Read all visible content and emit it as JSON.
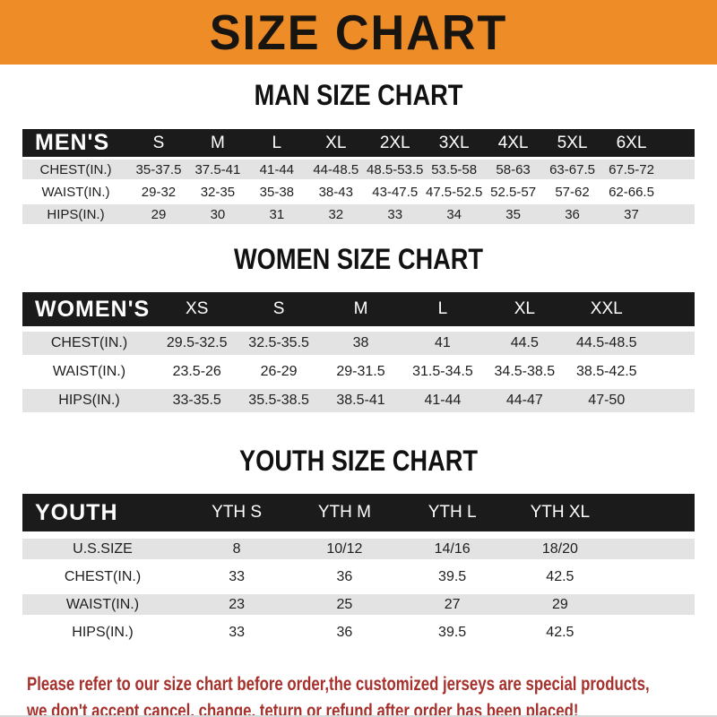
{
  "banner": {
    "title": "SIZE CHART"
  },
  "sections": [
    {
      "heading": "MAN SIZE CHART",
      "header_label": "MEN'S",
      "columns": [
        "S",
        "M",
        "L",
        "XL",
        "2XL",
        "3XL",
        "4XL",
        "5XL",
        "6XL"
      ],
      "rows": [
        {
          "label": "CHEST(IN.)",
          "values": [
            "35-37.5",
            "37.5-41",
            "41-44",
            "44-48.5",
            "48.5-53.5",
            "53.5-58",
            "58-63",
            "63-67.5",
            "67.5-72"
          ]
        },
        {
          "label": "WAIST(IN.)",
          "values": [
            "29-32",
            "32-35",
            "35-38",
            "38-43",
            "43-47.5",
            "47.5-52.5",
            "52.5-57",
            "57-62",
            "62-66.5"
          ]
        },
        {
          "label": "HIPS(IN.)",
          "values": [
            "29",
            "30",
            "31",
            "32",
            "33",
            "34",
            "35",
            "36",
            "37"
          ]
        }
      ]
    },
    {
      "heading": "WOMEN SIZE CHART",
      "header_label": "WOMEN'S",
      "columns": [
        "XS",
        "S",
        "M",
        "L",
        "XL",
        "XXL"
      ],
      "rows": [
        {
          "label": "CHEST(IN.)",
          "values": [
            "29.5-32.5",
            "32.5-35.5",
            "38",
            "41",
            "44.5",
            "44.5-48.5"
          ]
        },
        {
          "label": "WAIST(IN.)",
          "values": [
            "23.5-26",
            "26-29",
            "29-31.5",
            "31.5-34.5",
            "34.5-38.5",
            "38.5-42.5"
          ]
        },
        {
          "label": "HIPS(IN.)",
          "values": [
            "33-35.5",
            "35.5-38.5",
            "38.5-41",
            "41-44",
            "44-47",
            "47-50"
          ]
        }
      ]
    },
    {
      "heading": "YOUTH SIZE CHART",
      "header_label": "YOUTH",
      "columns": [
        "YTH S",
        "YTH M",
        "YTH L",
        "YTH XL"
      ],
      "rows": [
        {
          "label": "U.S.SIZE",
          "values": [
            "8",
            "10/12",
            "14/16",
            "18/20"
          ]
        },
        {
          "label": "CHEST(IN.)",
          "values": [
            "33",
            "36",
            "39.5",
            "42.5"
          ]
        },
        {
          "label": "WAIST(IN.)",
          "values": [
            "23",
            "25",
            "27",
            "29"
          ]
        },
        {
          "label": "HIPS(IN.)",
          "values": [
            "33",
            "36",
            "39.5",
            "42.5"
          ]
        }
      ]
    }
  ],
  "footer": {
    "line1": "Please refer to our size chart before order,the customized jerseys are special products,",
    "line2": "we don't accept cancel, change, teturn or refund after order has been placed!"
  },
  "colors": {
    "banner_orange": "#EE8C28",
    "header_bar_black": "#1b1b1b",
    "row_gray": "#E3E3E3",
    "footer_red": "#A6302B"
  }
}
